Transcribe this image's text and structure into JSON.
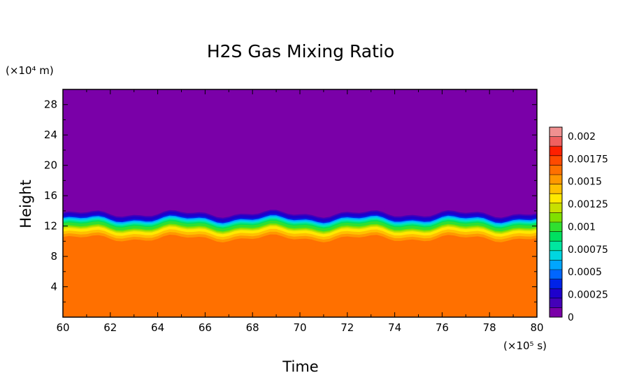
{
  "chart_data": {
    "type": "heatmap",
    "title": "H2S Gas Mixing Ratio",
    "xlabel": "Time",
    "ylabel": "Height",
    "x_unit_label": "(×10⁵ s)",
    "y_unit_label": "(×10⁴ m)",
    "xlim": [
      60,
      80
    ],
    "ylim": [
      0,
      30
    ],
    "x_ticks": [
      "60",
      "62",
      "64",
      "66",
      "68",
      "70",
      "72",
      "74",
      "76",
      "78",
      "80"
    ],
    "y_ticks": [
      "4",
      "8",
      "12",
      "16",
      "20",
      "24",
      "28"
    ],
    "colorbar": {
      "range": [
        0,
        0.0021
      ],
      "tick_labels": [
        "0.002",
        "0.00175",
        "0.0015",
        "0.00125",
        "0.001",
        "0.00075",
        "0.0005",
        "0.00025",
        "0"
      ],
      "colors": [
        "#7a00a8",
        "#4400b8",
        "#1e00cc",
        "#0022e8",
        "#0066ff",
        "#00a6ff",
        "#00d6e0",
        "#00e6a0",
        "#00e060",
        "#30e030",
        "#80e000",
        "#c8e000",
        "#ffe800",
        "#ffc000",
        "#ff9800",
        "#ff7000",
        "#ff4a00",
        "#ff2000",
        "#f06060",
        "#f09090"
      ]
    },
    "profile": [
      {
        "height": 0,
        "value": 0.00167
      },
      {
        "height": 9.5,
        "value": 0.00167
      },
      {
        "height": 10.2,
        "value": 0.0016
      },
      {
        "height": 11.0,
        "value": 0.0014
      },
      {
        "height": 11.8,
        "value": 0.0011
      },
      {
        "height": 12.4,
        "value": 0.0008
      },
      {
        "height": 13.0,
        "value": 0.0004
      },
      {
        "height": 13.6,
        "value": 0.0001
      },
      {
        "height": 14.2,
        "value": 0.0
      },
      {
        "height": 30,
        "value": 0.0
      }
    ],
    "grid": false,
    "legend": "colorbar right"
  }
}
